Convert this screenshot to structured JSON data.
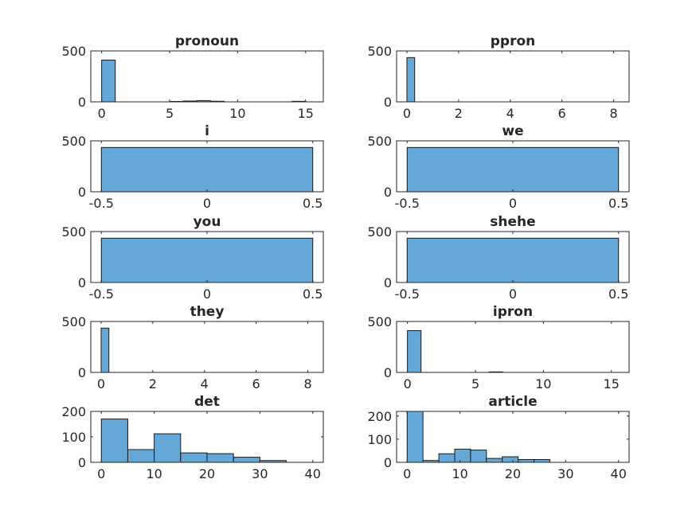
{
  "chart_data": [
    {
      "type": "bar",
      "title": "pronoun",
      "xlim": [
        -0.8,
        16.3
      ],
      "ylim": [
        0,
        500
      ],
      "xticks": [
        0,
        5,
        10,
        15
      ],
      "xtick_labels": [
        "0",
        "5",
        "10",
        "15"
      ],
      "yticks": [
        0,
        500
      ],
      "ytick_labels": [
        "0",
        "500"
      ],
      "bins": [
        {
          "x0": 0,
          "x1": 1,
          "value": 410
        },
        {
          "x0": 5,
          "x1": 6,
          "value": 4
        },
        {
          "x0": 6,
          "x1": 7,
          "value": 8
        },
        {
          "x0": 7,
          "x1": 8,
          "value": 12
        },
        {
          "x0": 8,
          "x1": 9,
          "value": 6
        },
        {
          "x0": 14,
          "x1": 15,
          "value": 5
        }
      ]
    },
    {
      "type": "bar",
      "title": "ppron",
      "xlim": [
        -0.4,
        8.6
      ],
      "ylim": [
        0,
        500
      ],
      "xticks": [
        0,
        2,
        4,
        6,
        8
      ],
      "xtick_labels": [
        "0",
        "2",
        "4",
        "6",
        "8"
      ],
      "yticks": [
        0,
        500
      ],
      "ytick_labels": [
        "0",
        "500"
      ],
      "bins": [
        {
          "x0": 0,
          "x1": 0.3,
          "value": 435
        }
      ]
    },
    {
      "type": "bar",
      "title": "i",
      "xlim": [
        -0.55,
        0.55
      ],
      "ylim": [
        0,
        500
      ],
      "xticks": [
        -0.5,
        0,
        0.5
      ],
      "xtick_labels": [
        "-0.5",
        "0",
        "0.5"
      ],
      "yticks": [
        0,
        500
      ],
      "ytick_labels": [
        "0",
        "500"
      ],
      "bins": [
        {
          "x0": -0.5,
          "x1": 0.5,
          "value": 435
        }
      ]
    },
    {
      "type": "bar",
      "title": "we",
      "xlim": [
        -0.55,
        0.55
      ],
      "ylim": [
        0,
        500
      ],
      "xticks": [
        -0.5,
        0,
        0.5
      ],
      "xtick_labels": [
        "-0.5",
        "0",
        "0.5"
      ],
      "yticks": [
        0,
        500
      ],
      "ytick_labels": [
        "0",
        "500"
      ],
      "bins": [
        {
          "x0": -0.5,
          "x1": 0.5,
          "value": 435
        }
      ]
    },
    {
      "type": "bar",
      "title": "you",
      "xlim": [
        -0.55,
        0.55
      ],
      "ylim": [
        0,
        500
      ],
      "xticks": [
        -0.5,
        0,
        0.5
      ],
      "xtick_labels": [
        "-0.5",
        "0",
        "0.5"
      ],
      "yticks": [
        0,
        500
      ],
      "ytick_labels": [
        "0",
        "500"
      ],
      "bins": [
        {
          "x0": -0.5,
          "x1": 0.5,
          "value": 435
        }
      ]
    },
    {
      "type": "bar",
      "title": "shehe",
      "xlim": [
        -0.55,
        0.55
      ],
      "ylim": [
        0,
        500
      ],
      "xticks": [
        -0.5,
        0,
        0.5
      ],
      "xtick_labels": [
        "-0.5",
        "0",
        "0.5"
      ],
      "yticks": [
        0,
        500
      ],
      "ytick_labels": [
        "0",
        "500"
      ],
      "bins": [
        {
          "x0": -0.5,
          "x1": 0.5,
          "value": 435
        }
      ]
    },
    {
      "type": "bar",
      "title": "they",
      "xlim": [
        -0.4,
        8.6
      ],
      "ylim": [
        0,
        500
      ],
      "xticks": [
        0,
        2,
        4,
        6,
        8
      ],
      "xtick_labels": [
        "0",
        "2",
        "4",
        "6",
        "8"
      ],
      "yticks": [
        0,
        500
      ],
      "ytick_labels": [
        "0",
        "500"
      ],
      "bins": [
        {
          "x0": 0,
          "x1": 0.3,
          "value": 435
        }
      ]
    },
    {
      "type": "bar",
      "title": "ipron",
      "xlim": [
        -0.8,
        16.3
      ],
      "ylim": [
        0,
        500
      ],
      "xticks": [
        0,
        5,
        10,
        15
      ],
      "xtick_labels": [
        "0",
        "5",
        "10",
        "15"
      ],
      "yticks": [
        0,
        500
      ],
      "ytick_labels": [
        "0",
        "500"
      ],
      "bins": [
        {
          "x0": 0,
          "x1": 1,
          "value": 410
        },
        {
          "x0": 6,
          "x1": 7,
          "value": 5
        }
      ]
    },
    {
      "type": "bar",
      "title": "det",
      "xlim": [
        -2,
        42
      ],
      "ylim": [
        0,
        200
      ],
      "xticks": [
        0,
        10,
        20,
        30,
        40
      ],
      "xtick_labels": [
        "0",
        "10",
        "20",
        "30",
        "40"
      ],
      "yticks": [
        0,
        100,
        200
      ],
      "ytick_labels": [
        "0",
        "100",
        "200"
      ],
      "bins": [
        {
          "x0": 0,
          "x1": 5,
          "value": 170
        },
        {
          "x0": 5,
          "x1": 10,
          "value": 50
        },
        {
          "x0": 10,
          "x1": 15,
          "value": 112
        },
        {
          "x0": 15,
          "x1": 20,
          "value": 37
        },
        {
          "x0": 20,
          "x1": 25,
          "value": 34
        },
        {
          "x0": 25,
          "x1": 30,
          "value": 20
        },
        {
          "x0": 30,
          "x1": 35,
          "value": 7
        }
      ]
    },
    {
      "type": "bar",
      "title": "article",
      "xlim": [
        -2,
        42
      ],
      "ylim": [
        0,
        220
      ],
      "xticks": [
        0,
        10,
        20,
        30,
        40
      ],
      "xtick_labels": [
        "0",
        "10",
        "20",
        "30",
        "40"
      ],
      "yticks": [
        0,
        100,
        200
      ],
      "ytick_labels": [
        "0",
        "100",
        "200"
      ],
      "bins": [
        {
          "x0": 0,
          "x1": 3,
          "value": 220
        },
        {
          "x0": 3,
          "x1": 6,
          "value": 8
        },
        {
          "x0": 6,
          "x1": 9,
          "value": 37
        },
        {
          "x0": 9,
          "x1": 12,
          "value": 57
        },
        {
          "x0": 12,
          "x1": 15,
          "value": 53
        },
        {
          "x0": 15,
          "x1": 18,
          "value": 17
        },
        {
          "x0": 18,
          "x1": 21,
          "value": 24
        },
        {
          "x0": 21,
          "x1": 24,
          "value": 12
        },
        {
          "x0": 24,
          "x1": 27,
          "value": 12
        }
      ]
    }
  ]
}
